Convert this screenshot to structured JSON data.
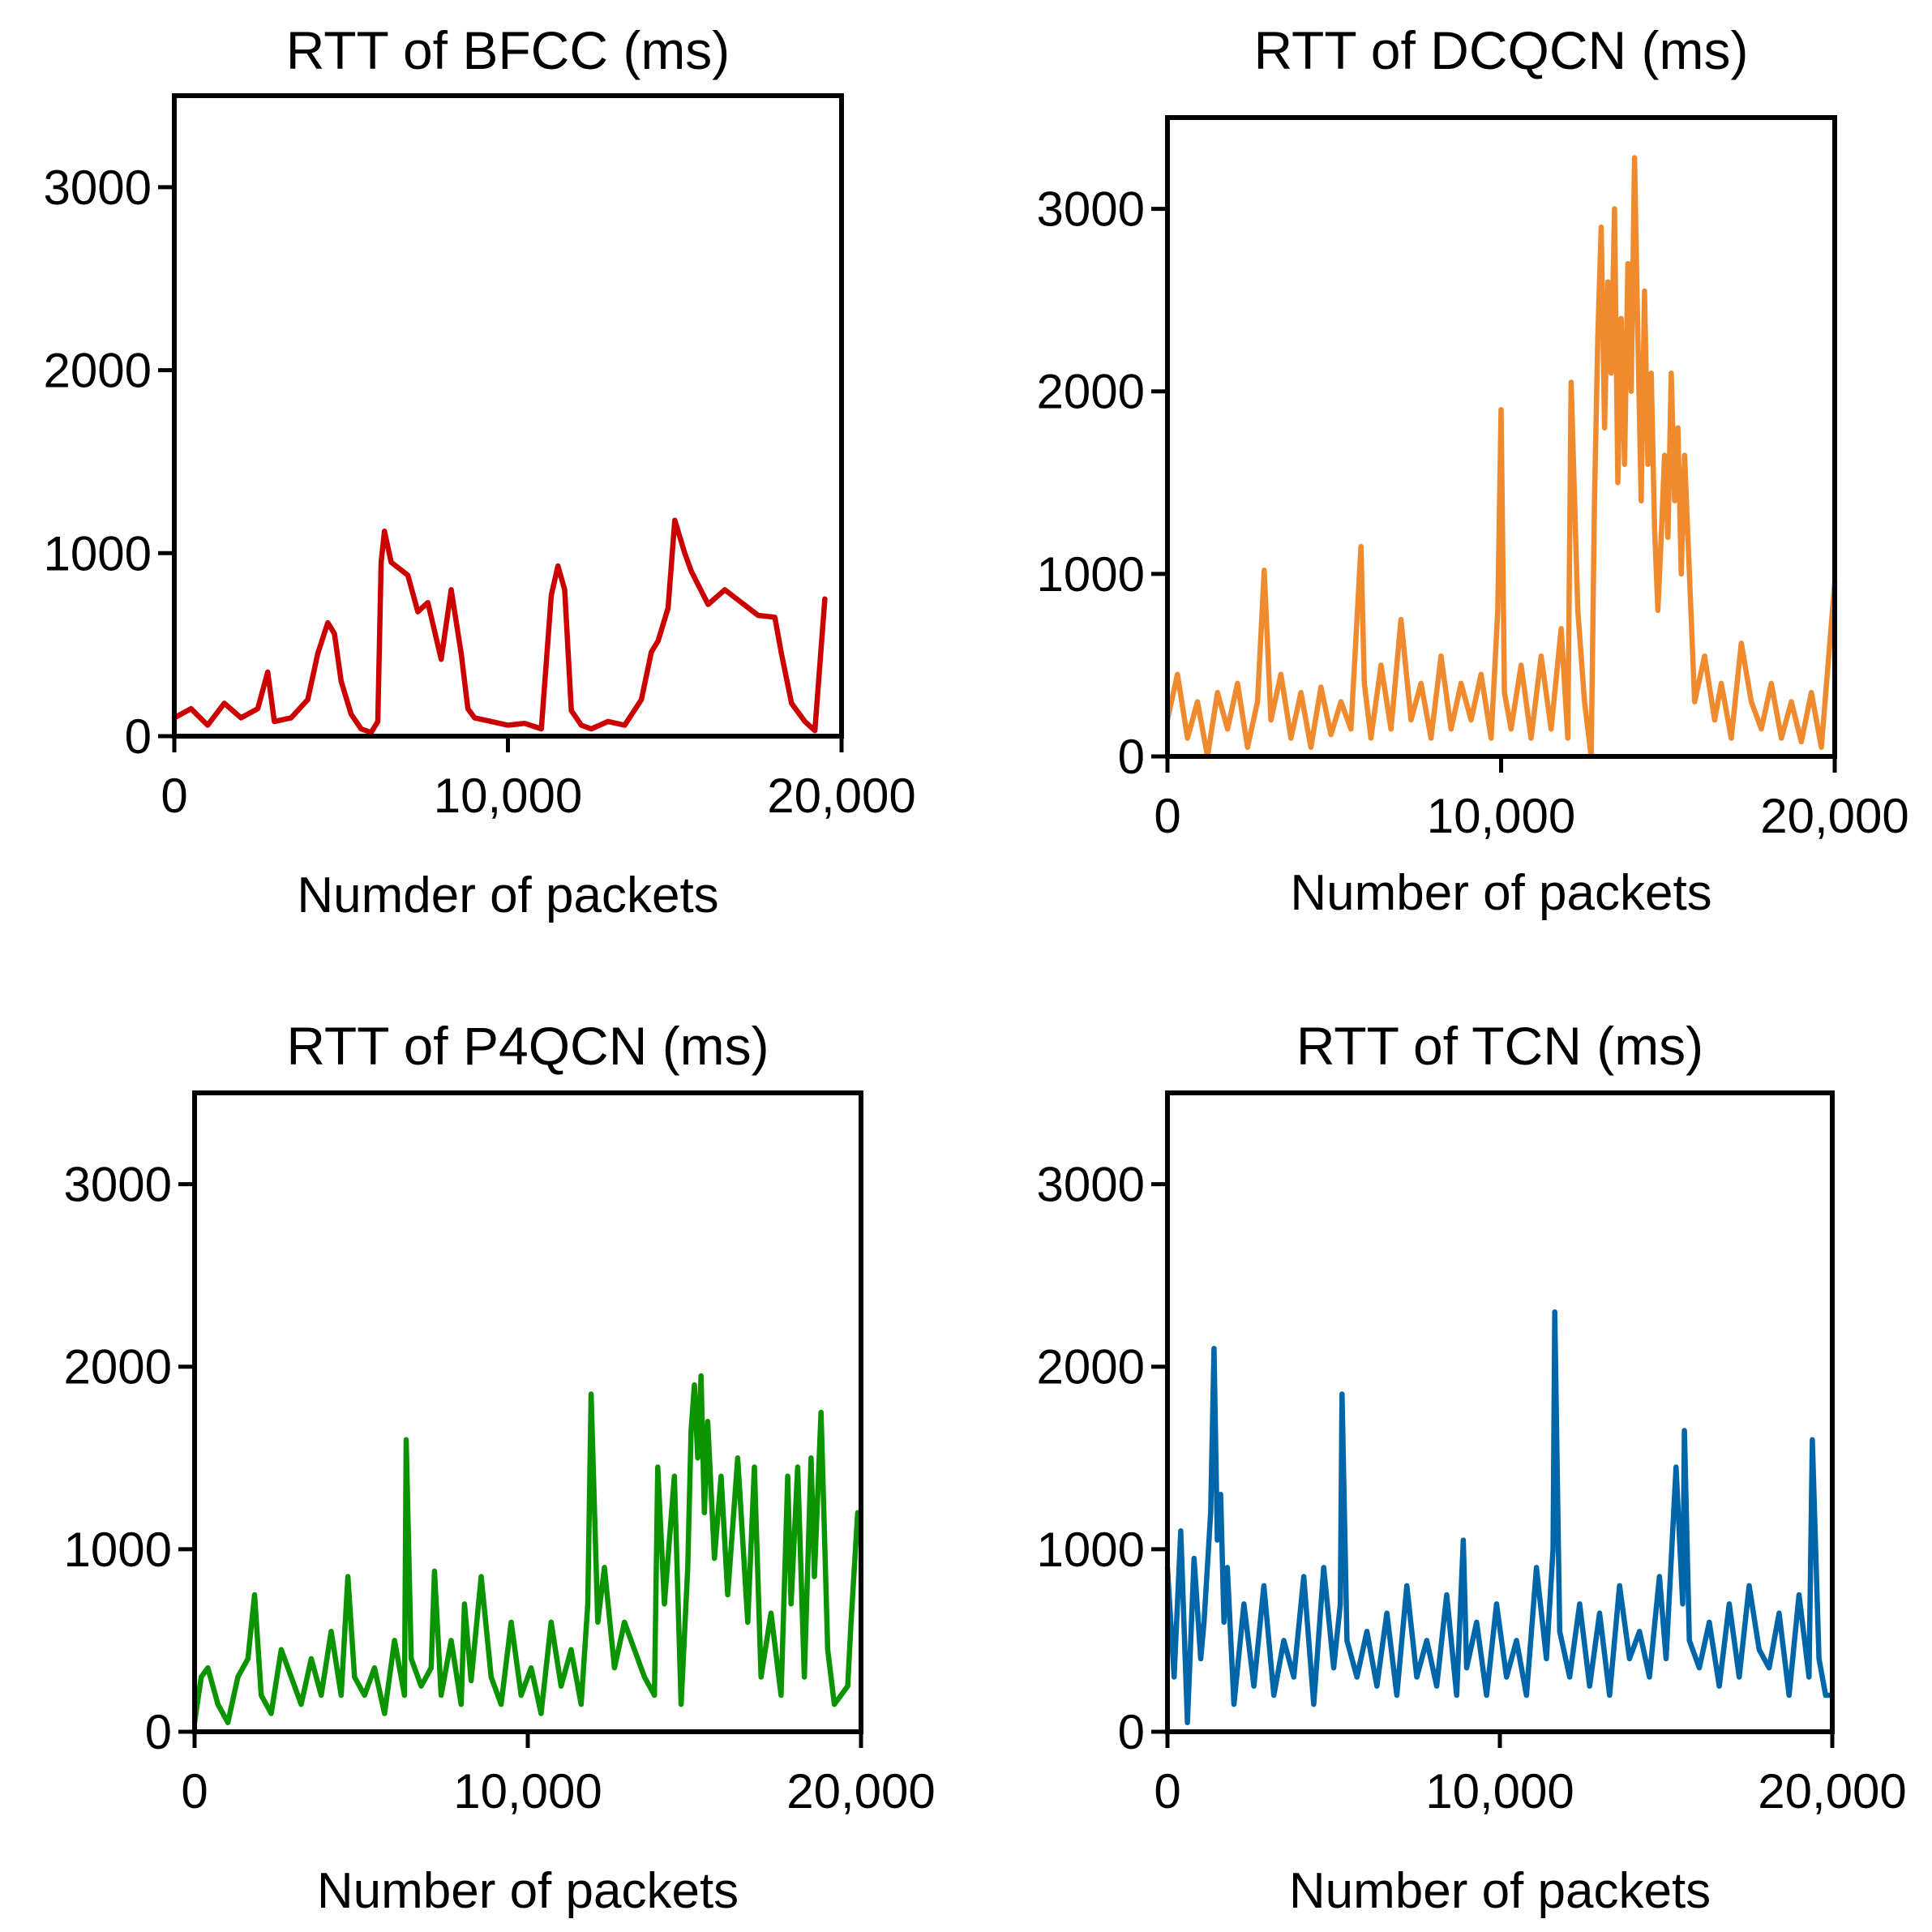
{
  "chart_data": [
    {
      "type": "line",
      "title": "RTT of BFCC (ms)",
      "xlabel": "Numder of packets",
      "ylabel": "",
      "xlim": [
        0,
        20000
      ],
      "ylim": [
        0,
        3500
      ],
      "xticks": [
        0,
        10000,
        20000
      ],
      "xtick_labels": [
        "0",
        "10,000",
        "20,000"
      ],
      "yticks": [
        0,
        1000,
        2000,
        3000
      ],
      "ytick_labels": [
        "0",
        "1000",
        "2000",
        "3000"
      ],
      "color": "#cc0000",
      "series": [
        {
          "name": "BFCC",
          "x": [
            0,
            500,
            1000,
            1500,
            2000,
            2500,
            2800,
            3000,
            3500,
            4000,
            4300,
            4600,
            4800,
            5000,
            5300,
            5600,
            5900,
            6100,
            6200,
            6300,
            6500,
            7000,
            7300,
            7600,
            8000,
            8300,
            8600,
            8800,
            9000,
            9500,
            10000,
            10500,
            11000,
            11300,
            11500,
            11700,
            11900,
            12200,
            12500,
            13000,
            13500,
            14000,
            14300,
            14500,
            14800,
            15000,
            15300,
            15500,
            16000,
            16500,
            17000,
            17500,
            18000,
            18200,
            18500,
            18900,
            19200,
            19500
          ],
          "y": [
            100,
            150,
            60,
            180,
            100,
            150,
            350,
            80,
            100,
            200,
            450,
            620,
            560,
            300,
            120,
            40,
            20,
            80,
            950,
            1120,
            950,
            880,
            680,
            730,
            420,
            800,
            450,
            150,
            100,
            80,
            60,
            70,
            40,
            770,
            930,
            800,
            140,
            60,
            40,
            80,
            60,
            200,
            460,
            520,
            700,
            1180,
            1000,
            900,
            720,
            800,
            730,
            660,
            650,
            450,
            180,
            80,
            30,
            750
          ]
        }
      ]
    },
    {
      "type": "line",
      "title": "RTT of DCQCN (ms)",
      "xlabel": "Number of packets",
      "ylabel": "",
      "xlim": [
        0,
        20000
      ],
      "ylim": [
        0,
        3500
      ],
      "xticks": [
        0,
        10000,
        20000
      ],
      "xtick_labels": [
        "0",
        "10,000",
        "20,000"
      ],
      "yticks": [
        0,
        1000,
        2000,
        3000
      ],
      "ytick_labels": [
        "0",
        "1000",
        "2000",
        "3000"
      ],
      "color": "#f08a2e",
      "series": [
        {
          "name": "DCQCN",
          "x": [
            0,
            300,
            600,
            900,
            1200,
            1500,
            1800,
            2100,
            2400,
            2700,
            2900,
            3100,
            3400,
            3700,
            4000,
            4300,
            4600,
            4900,
            5200,
            5500,
            5800,
            5900,
            6100,
            6400,
            6700,
            7000,
            7300,
            7600,
            7900,
            8200,
            8500,
            8800,
            9100,
            9400,
            9700,
            9900,
            10000,
            10100,
            10300,
            10600,
            10900,
            11200,
            11500,
            11800,
            12000,
            12100,
            12300,
            12500,
            12700,
            12800,
            12900,
            13000,
            13100,
            13200,
            13300,
            13400,
            13500,
            13600,
            13700,
            13800,
            13900,
            14000,
            14100,
            14200,
            14300,
            14400,
            14500,
            14600,
            14700,
            14800,
            14900,
            15000,
            15100,
            15200,
            15300,
            15400,
            15500,
            15800,
            16100,
            16400,
            16600,
            16900,
            17200,
            17500,
            17800,
            18100,
            18400,
            18700,
            19000,
            19300,
            19600,
            20000
          ],
          "y": [
            200,
            450,
            100,
            300,
            0,
            350,
            150,
            400,
            50,
            300,
            1020,
            200,
            450,
            100,
            350,
            50,
            380,
            120,
            300,
            150,
            1150,
            400,
            100,
            500,
            150,
            750,
            200,
            400,
            100,
            550,
            150,
            400,
            200,
            450,
            100,
            800,
            1900,
            350,
            150,
            500,
            100,
            550,
            150,
            700,
            100,
            2050,
            800,
            300,
            0,
            1400,
            2300,
            2900,
            1800,
            2600,
            2100,
            3000,
            1500,
            2400,
            1600,
            2700,
            2000,
            3280,
            2300,
            1400,
            2550,
            1600,
            2100,
            1250,
            800,
            1200,
            1650,
            1200,
            2100,
            1400,
            1800,
            1000,
            1650,
            300,
            550,
            200,
            400,
            100,
            620,
            300,
            150,
            400,
            100,
            300,
            80,
            350,
            50,
            950
          ]
        }
      ]
    },
    {
      "type": "line",
      "title": "RTT of P4QCN (ms)",
      "xlabel": "Number of packets",
      "ylabel": "",
      "xlim": [
        0,
        20000
      ],
      "ylim": [
        0,
        3500
      ],
      "xticks": [
        0,
        10000,
        20000
      ],
      "xtick_labels": [
        "0",
        "10,000",
        "20,000"
      ],
      "yticks": [
        0,
        1000,
        2000,
        3000
      ],
      "ytick_labels": [
        "0",
        "1000",
        "2000",
        "3000"
      ],
      "color": "#0a9400",
      "series": [
        {
          "name": "P4QCN",
          "x": [
            0,
            200,
            400,
            700,
            1000,
            1300,
            1600,
            1800,
            2000,
            2300,
            2600,
            2900,
            3200,
            3500,
            3800,
            4100,
            4400,
            4600,
            4800,
            5100,
            5400,
            5700,
            6000,
            6300,
            6350,
            6500,
            6800,
            7100,
            7200,
            7400,
            7700,
            8000,
            8100,
            8300,
            8600,
            8900,
            9200,
            9500,
            9800,
            10100,
            10400,
            10700,
            11000,
            11300,
            11600,
            11800,
            11900,
            12100,
            12300,
            12600,
            12900,
            13200,
            13500,
            13800,
            13900,
            14100,
            14400,
            14600,
            14800,
            14900,
            15000,
            15100,
            15200,
            15300,
            15400,
            15600,
            15800,
            16000,
            16300,
            16600,
            16800,
            17000,
            17300,
            17600,
            17800,
            17900,
            18100,
            18300,
            18500,
            18600,
            18800,
            19000,
            19200,
            19400,
            19600,
            19700,
            19900
          ],
          "y": [
            50,
            300,
            350,
            150,
            50,
            300,
            400,
            750,
            200,
            100,
            450,
            300,
            150,
            400,
            200,
            550,
            200,
            850,
            300,
            200,
            350,
            100,
            500,
            200,
            1600,
            400,
            250,
            350,
            880,
            200,
            500,
            150,
            700,
            280,
            850,
            300,
            150,
            600,
            200,
            350,
            100,
            600,
            250,
            450,
            150,
            700,
            1850,
            600,
            900,
            350,
            600,
            450,
            300,
            200,
            1450,
            700,
            1400,
            150,
            900,
            1650,
            1900,
            1500,
            1950,
            1200,
            1700,
            950,
            1400,
            750,
            1500,
            600,
            1450,
            300,
            650,
            200,
            1400,
            700,
            1450,
            300,
            1500,
            850,
            1750,
            450,
            150,
            200,
            250,
            600,
            1200
          ]
        }
      ]
    },
    {
      "type": "line",
      "title": "RTT of TCN (ms)",
      "xlabel": "Number of packets",
      "ylabel": "",
      "xlim": [
        0,
        20000
      ],
      "ylim": [
        0,
        3500
      ],
      "xticks": [
        0,
        10000,
        20000
      ],
      "xtick_labels": [
        "0",
        "10,000",
        "20,000"
      ],
      "yticks": [
        0,
        1000,
        2000,
        3000
      ],
      "ytick_labels": [
        "0",
        "1000",
        "2000",
        "3000"
      ],
      "color": "#0066aa",
      "series": [
        {
          "name": "TCN",
          "x": [
            0,
            200,
            400,
            600,
            800,
            1000,
            1100,
            1300,
            1400,
            1500,
            1600,
            1700,
            1800,
            2000,
            2300,
            2600,
            2900,
            3200,
            3500,
            3800,
            4100,
            4400,
            4700,
            5000,
            5200,
            5250,
            5400,
            5700,
            6000,
            6300,
            6600,
            6900,
            7200,
            7500,
            7800,
            8100,
            8400,
            8700,
            8900,
            9000,
            9300,
            9600,
            9900,
            10200,
            10500,
            10800,
            11100,
            11400,
            11600,
            11650,
            11800,
            12100,
            12400,
            12700,
            13000,
            13300,
            13600,
            13900,
            14200,
            14500,
            14800,
            15000,
            15300,
            15500,
            15550,
            15700,
            16000,
            16300,
            16600,
            16900,
            17200,
            17500,
            17800,
            18100,
            18400,
            18700,
            19000,
            19300,
            19400,
            19600,
            19800,
            20000
          ],
          "y": [
            900,
            300,
            1100,
            50,
            950,
            400,
            600,
            1200,
            2100,
            1050,
            1300,
            600,
            900,
            150,
            700,
            250,
            800,
            200,
            500,
            300,
            850,
            150,
            900,
            350,
            700,
            1850,
            500,
            300,
            550,
            250,
            650,
            200,
            800,
            300,
            500,
            250,
            750,
            200,
            1050,
            350,
            600,
            200,
            700,
            300,
            500,
            200,
            900,
            400,
            1000,
            2300,
            550,
            300,
            700,
            250,
            650,
            200,
            800,
            400,
            550,
            300,
            850,
            400,
            1450,
            700,
            1650,
            500,
            350,
            600,
            250,
            700,
            300,
            800,
            450,
            350,
            650,
            200,
            750,
            300,
            1600,
            400,
            200,
            200
          ]
        }
      ]
    }
  ]
}
